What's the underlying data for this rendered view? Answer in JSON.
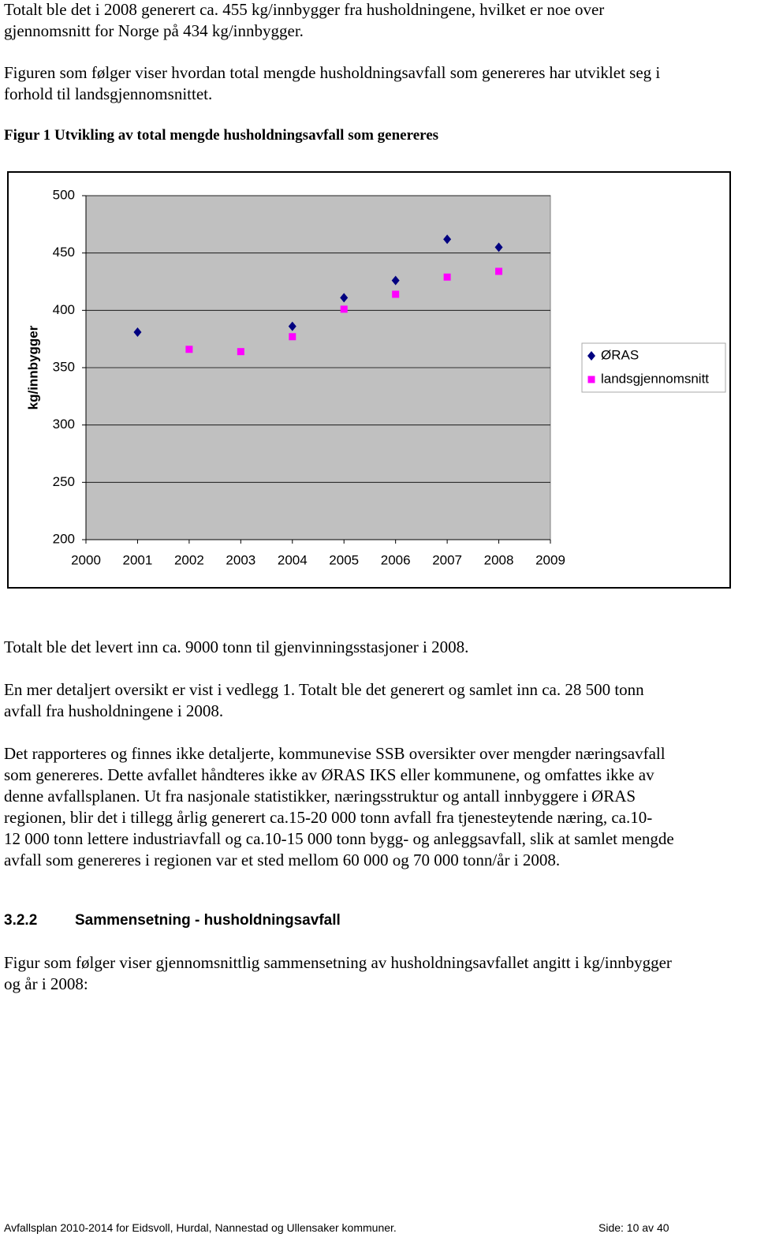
{
  "body_top": [
    {
      "lines": [
        "Totalt ble det i 2008 generert ca. 455 kg/innbygger fra husholdningene, hvilket er noe over",
        "gjennomsnitt for Norge på 434 kg/innbygger."
      ]
    },
    {
      "lines": [
        "Figuren som følger viser hvordan total mengde husholdningsavfall som genereres har utviklet seg i",
        "forhold til landsgjennomsnittet."
      ]
    }
  ],
  "figure_caption": "Figur 1 Utvikling av total mengde husholdningsavfall som genereres",
  "chart_data": {
    "type": "scatter",
    "y_label": "kg/innbygger",
    "series": [
      {
        "name": "ØRAS",
        "color": "#000080",
        "marker": "diamond",
        "x": [
          2001,
          2004,
          2005,
          2006,
          2007,
          2008
        ],
        "values": [
          381,
          386,
          411,
          426,
          462,
          455
        ]
      },
      {
        "name": "landsgjennomsnitt",
        "color": "#ff00ff",
        "marker": "square",
        "x": [
          2002,
          2003,
          2004,
          2005,
          2006,
          2007,
          2008
        ],
        "values": [
          366,
          364,
          377,
          401,
          414,
          429,
          434
        ]
      }
    ],
    "xlim": [
      2000,
      2009
    ],
    "xticks": [
      2000,
      2001,
      2002,
      2003,
      2004,
      2005,
      2006,
      2007,
      2008,
      2009
    ],
    "ylim": [
      200,
      500
    ],
    "yticks": [
      200,
      250,
      300,
      350,
      400,
      450,
      500
    ],
    "grid": true,
    "legend": "right",
    "plot_background": "#c0c0c0"
  },
  "body_bottom": [
    {
      "lines": [
        "Totalt ble det levert inn ca. 9000 tonn til gjenvinningsstasjoner i 2008."
      ]
    },
    {
      "lines": [
        "En mer detaljert oversikt er vist i vedlegg 1. Totalt ble det generert og samlet inn ca. 28 500 tonn",
        "avfall fra husholdningene i 2008."
      ]
    },
    {
      "lines": [
        "Det rapporteres og finnes ikke detaljerte, kommunevise SSB oversikter over mengder næringsavfall",
        "som genereres. Dette avfallet håndteres ikke av ØRAS IKS eller kommunene, og omfattes ikke av",
        "denne avfallsplanen. Ut fra nasjonale statistikker, næringsstruktur og antall innbyggere i ØRAS",
        "regionen, blir det i tillegg årlig generert ca.15-20 000 tonn avfall fra tjenesteytende næring, ca.10-",
        "12 000 tonn lettere industriavfall og ca.10-15 000 tonn bygg- og anleggsavfall, slik at samlet mengde",
        "avfall som genereres i regionen var et sted mellom 60 000 og 70 000 tonn/år i 2008."
      ]
    }
  ],
  "section_heading": {
    "number": "3.2.2",
    "title": "Sammensetning - husholdningsavfall"
  },
  "body_end": [
    {
      "lines": [
        "Figur som følger viser gjennomsnittlig sammensetning av husholdningsavfallet angitt i kg/innbygger",
        "og år i 2008:"
      ]
    }
  ],
  "footer": {
    "left": "Avfallsplan 2010-2014 for Eidsvoll, Hurdal, Nannestad og Ullensaker kommuner.",
    "right": "Side: 10 av 40"
  }
}
